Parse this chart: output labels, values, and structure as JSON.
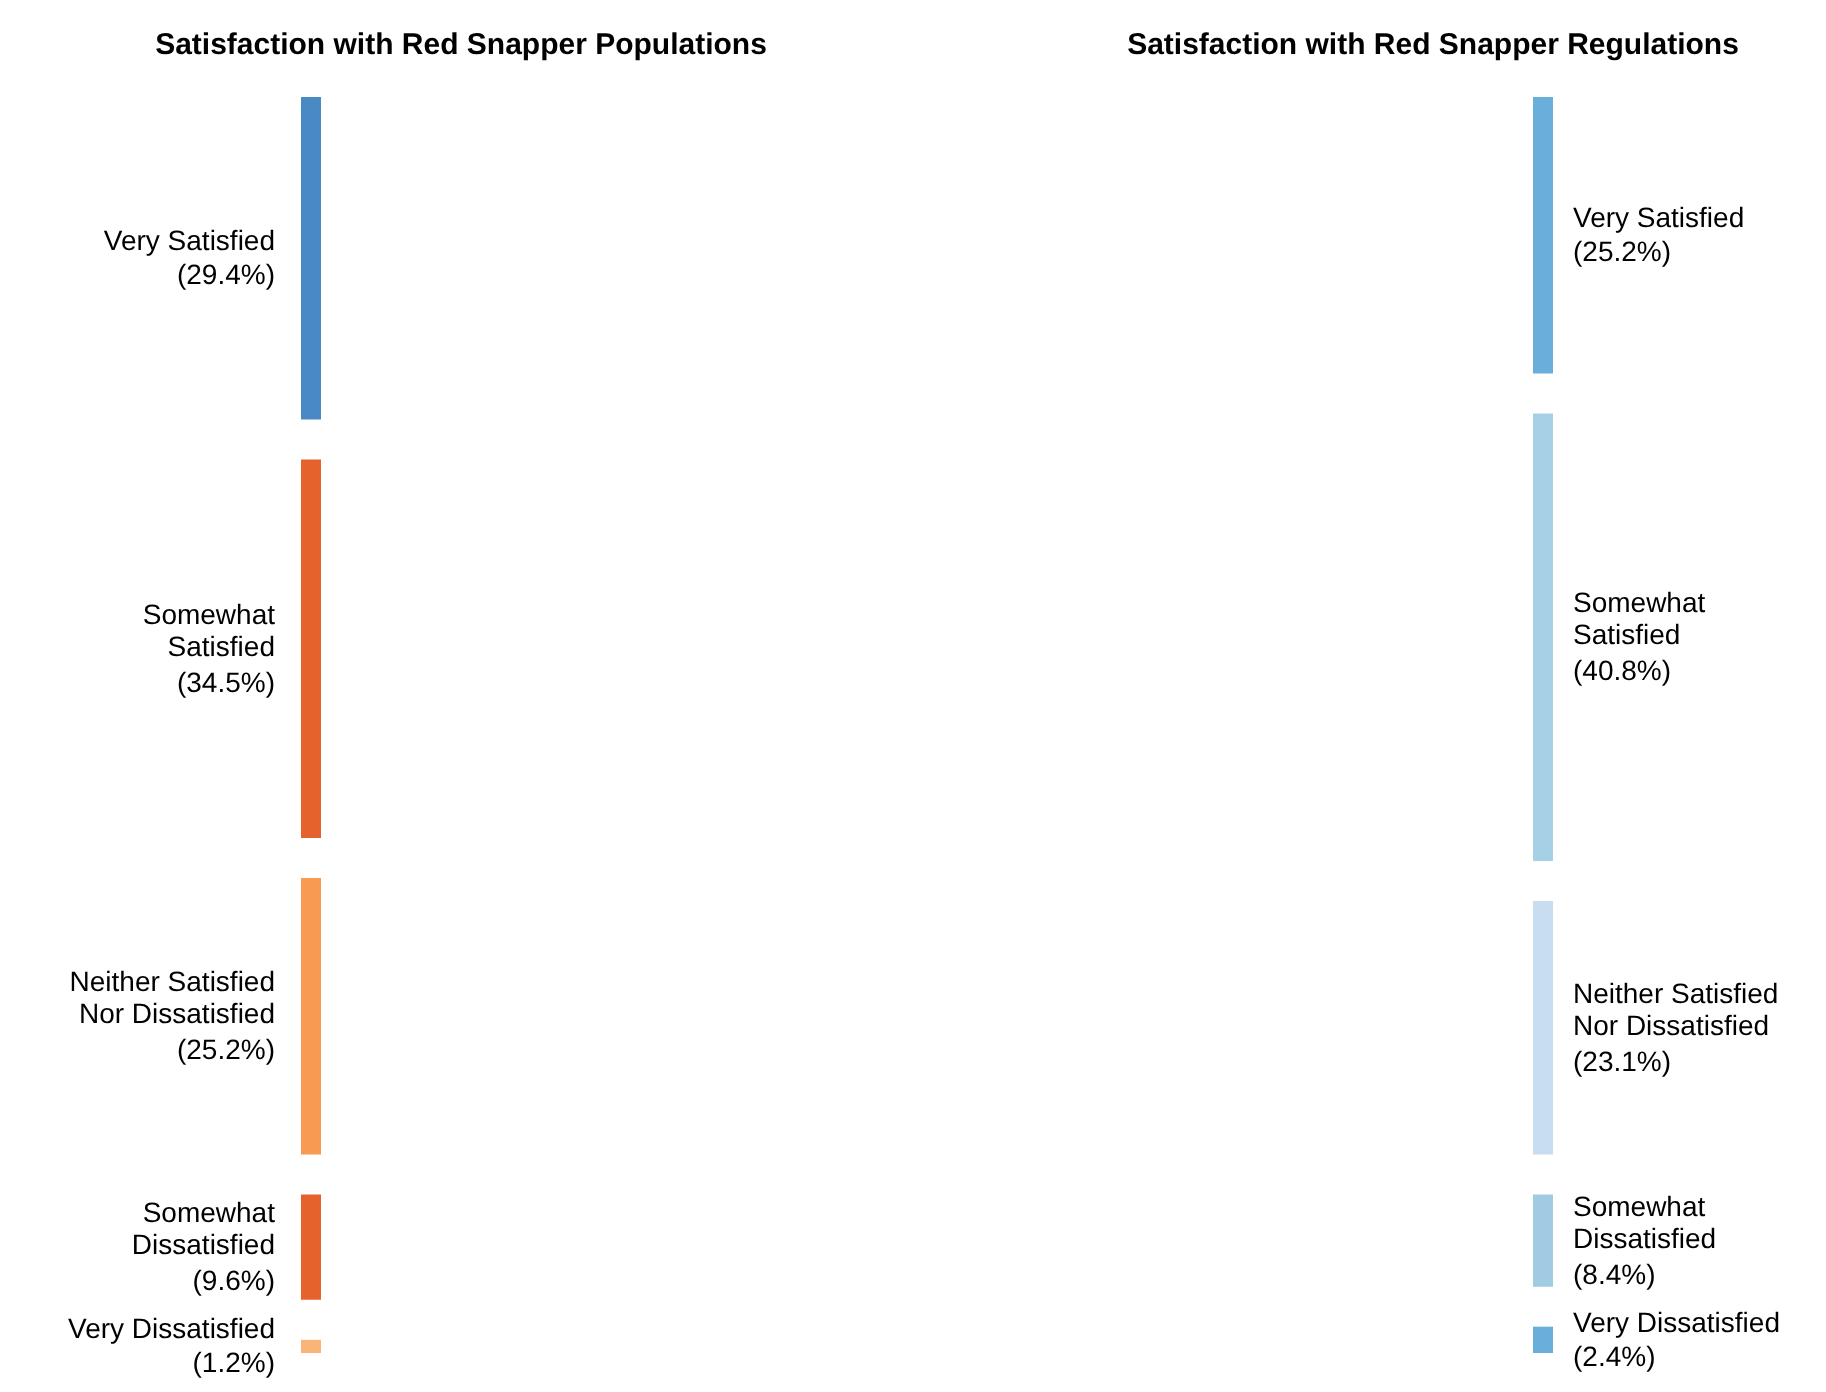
{
  "chart_data": {
    "type": "other",
    "categories": [
      "Very Satisfied",
      "Somewhat Satisfied",
      "Neither Satisfied Nor Dissatisfied",
      "Somewhat Dissatisfied",
      "Very Dissatisfied"
    ],
    "y2_categories": [
      "Very Satisfied",
      "Somewhat Satisfied",
      "Neither Satisfied Nor Dissatisfied",
      "Somewhat Dissatisfied",
      "Very Dissatisfied"
    ],
    "series": [
      {
        "name": "Satisfaction with Red Snapper Populations",
        "values": [
          29.4,
          34.5,
          25.2,
          9.6,
          1.2
        ],
        "value_labels": [
          "(29.4%)",
          "(34.5%)",
          "(25.2%)",
          "(9.6%)",
          "(1.2%)"
        ],
        "colors": [
          "#4a8ac4",
          "#e5622c",
          "#f99a52",
          "#e5622c",
          "#f9b47a"
        ]
      },
      {
        "name": "Satisfaction with Red Snapper Regulations",
        "values": [
          25.2,
          40.8,
          23.1,
          8.4,
          2.4
        ],
        "value_labels": [
          "(25.2%)",
          "(40.8%)",
          "(23.1%)",
          "(8.4%)",
          "(2.4%)"
        ],
        "colors": [
          "#6aaedb",
          "#a6d0e6",
          "#c9ddf0",
          "#a0cbe3",
          "#6aaedb"
        ]
      }
    ]
  }
}
